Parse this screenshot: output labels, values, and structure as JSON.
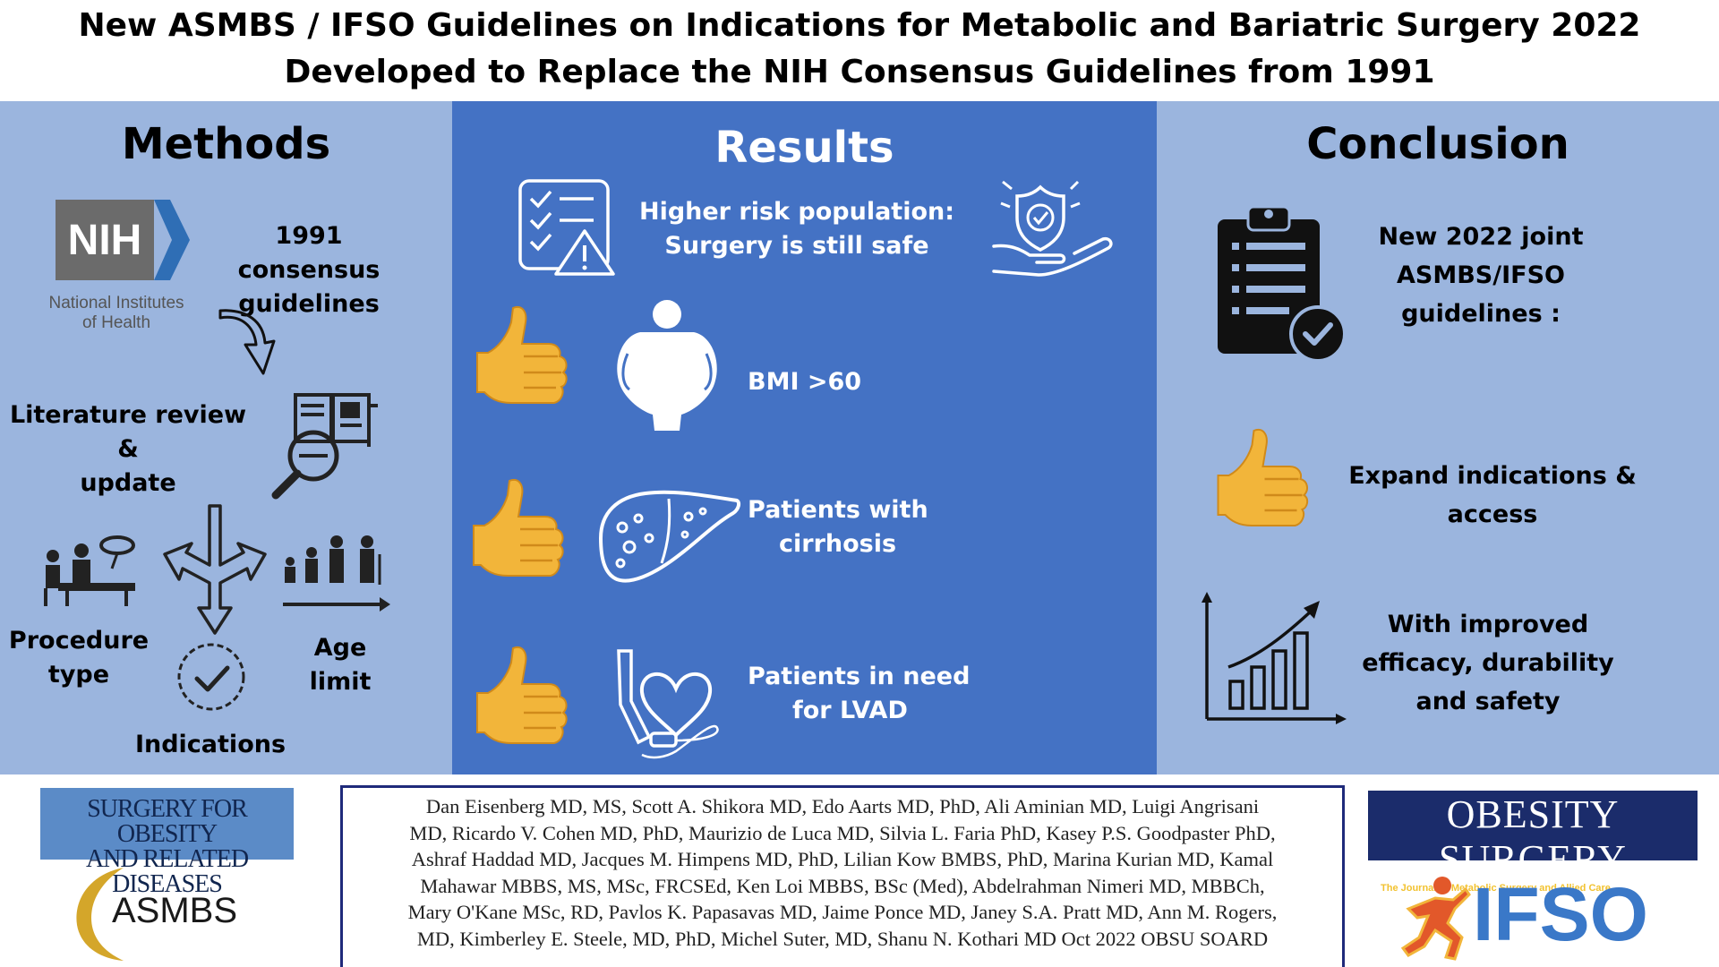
{
  "title": {
    "line1": "New ASMBS / IFSO Guidelines on Indications for Metabolic and Bariatric Surgery 2022",
    "line2": "Developed to Replace the NIH Consensus Guidelines from 1991"
  },
  "methods": {
    "heading": "Methods",
    "nih_logo_text": "NIH",
    "nih_name_line1": "National Institutes",
    "nih_name_line2": "of Health",
    "consensus_line1": "1991 consensus",
    "consensus_line2": "guidelines",
    "literature_line1": "Literature review &",
    "literature_line2": "update",
    "procedure_line1": "Procedure",
    "procedure_line2": "type",
    "age_line1": "Age",
    "age_line2": "limit",
    "indications": "Indications"
  },
  "results": {
    "heading": "Results",
    "risk_line1": "Higher risk population:",
    "risk_line2": "Surgery is still safe",
    "bmi": "BMI >60",
    "cirrhosis_line1": "Patients with",
    "cirrhosis_line2": "cirrhosis",
    "lvad_line1": "Patients in need",
    "lvad_line2": "for LVAD"
  },
  "conclusion": {
    "heading": "Conclusion",
    "guidelines_line1": "New 2022 joint",
    "guidelines_line2": "ASMBS/IFSO",
    "guidelines_line3": "guidelines :",
    "expand_line1": "Expand indications &",
    "expand_line2": "access",
    "improved_line1": "With improved",
    "improved_line2": "efficacy, durability",
    "improved_line3": "and safety"
  },
  "footer": {
    "sord_line1": "SURGERY FOR OBESITY",
    "sord_line2": "AND RELATED DISEASES",
    "asmbs": "ASMBS",
    "authors": [
      "Dan Eisenberg MD, MS, Scott A. Shikora MD, Edo Aarts MD, PhD, Ali Aminian MD, Luigi Angrisani",
      "MD, Ricardo V. Cohen MD, PhD, Maurizio de Luca MD, Silvia L. Faria PhD, Kasey P.S. Goodpaster PhD,",
      "Ashraf Haddad MD, Jacques M. Himpens MD, PhD, Lilian Kow BMBS, PhD, Marina Kurian MD, Kamal",
      "Mahawar MBBS, MS, MSc, FRCSEd, Ken Loi MBBS, BSc (Med), Abdelrahman Nimeri MD, MBBCh,",
      "Mary O'Kane MSc, RD, Pavlos K. Papasavas MD, Jaime Ponce MD, Janey S.A. Pratt MD, Ann M. Rogers,",
      "MD, Kimberley E. Steele, MD, PhD, Michel Suter, MD, Shanu N. Kothari MD Oct 2022 OBSU SOARD"
    ],
    "os_title": "OBESITY SURGERY",
    "os_subtitle": "The Journal of Metabolic Surgery and Allied Care",
    "ifso": "IFSO"
  },
  "colors": {
    "side_panel": "#9bb5de",
    "middle_panel": "#4472c4",
    "thumb": "#f2b53a",
    "journal_navy": "#1b2c6b"
  },
  "icons": [
    "nih-logo",
    "curved-arrow-icon",
    "literature-search-icon",
    "surgery-team-icon",
    "diverging-arrows-icon",
    "checkmark-circle-icon",
    "age-progression-icon",
    "checklist-warning-icon",
    "shield-hand-icon",
    "thumbs-up-icon",
    "obese-body-icon",
    "liver-icon",
    "lvad-heart-icon",
    "clipboard-check-icon",
    "growth-chart-icon"
  ]
}
